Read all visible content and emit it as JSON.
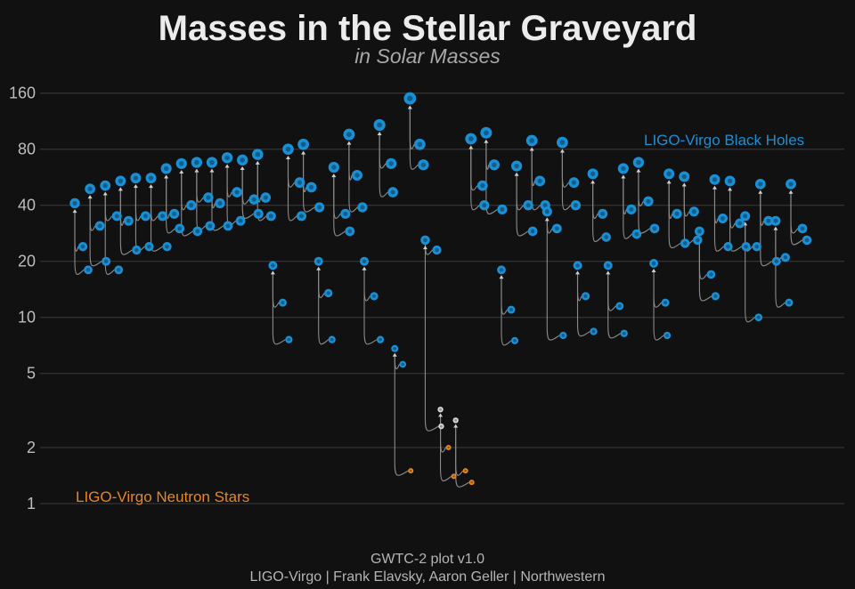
{
  "chart_data": {
    "type": "scatter",
    "title": "Masses in the Stellar Graveyard",
    "subtitle": "in Solar Masses",
    "yscale": "log",
    "ylim": [
      0.9,
      180
    ],
    "yticks": [
      1,
      2,
      5,
      10,
      20,
      40,
      80,
      160
    ],
    "grid": true,
    "annotations": {
      "black_holes_label": "LIGO-Virgo Black Holes",
      "neutron_stars_label": "LIGO-Virgo Neutron Stars"
    },
    "colors": {
      "black_hole": "#1a8fd4",
      "neutron_star": "#e8871e",
      "mass_gap": "#d8d8d8",
      "curve": "#8a8a8a",
      "grid": "#3c3c3c"
    },
    "mergers": [
      {
        "final": 41,
        "m1": 24,
        "m2": 18
      },
      {
        "final": 49,
        "m1": 31,
        "m2": 20
      },
      {
        "final": 51,
        "m1": 35,
        "m2": 18
      },
      {
        "final": 54,
        "m1": 33,
        "m2": 23
      },
      {
        "final": 56,
        "m1": 35,
        "m2": 24
      },
      {
        "final": 56,
        "m1": 35,
        "m2": 24
      },
      {
        "final": 63,
        "m1": 36,
        "m2": 30
      },
      {
        "final": 67,
        "m1": 40,
        "m2": 29
      },
      {
        "final": 68,
        "m1": 44,
        "m2": 31
      },
      {
        "final": 68,
        "m1": 41,
        "m2": 31
      },
      {
        "final": 72,
        "m1": 47,
        "m2": 33
      },
      {
        "final": 70,
        "m1": 43,
        "m2": 36
      },
      {
        "final": 75,
        "m1": 44,
        "m2": 35
      },
      {
        "final": 19,
        "m1": 12,
        "m2": 7.6
      },
      {
        "final": 80,
        "m1": 53,
        "m2": 35
      },
      {
        "final": 85,
        "m1": 50,
        "m2": 39
      },
      {
        "final": 20,
        "m1": 13.5,
        "m2": 7.6
      },
      {
        "final": 64,
        "m1": 36,
        "m2": 29
      },
      {
        "final": 96,
        "m1": 58,
        "m2": 39
      },
      {
        "final": 20,
        "m1": 13,
        "m2": 7.6
      },
      {
        "final": 108,
        "m1": 67,
        "m2": 47
      },
      {
        "final": 6.8,
        "m1": 5.6,
        "m2": 1.5
      },
      {
        "final": 150,
        "m1": 85,
        "m2": 66
      },
      {
        "final": 26,
        "m1": 23,
        "m2": 2.6
      },
      {
        "final": 3.2,
        "m1": 2.0,
        "m2": 1.4
      },
      {
        "final": 2.8,
        "m1": 1.5,
        "m2": 1.3
      },
      {
        "final": 91,
        "m1": 51,
        "m2": 40
      },
      {
        "final": 98,
        "m1": 66,
        "m2": 38
      },
      {
        "final": 18,
        "m1": 11,
        "m2": 7.5
      },
      {
        "final": 65,
        "m1": 40,
        "m2": 29
      },
      {
        "final": 89,
        "m1": 54,
        "m2": 40
      },
      {
        "final": 37,
        "m1": 30,
        "m2": 8
      },
      {
        "final": 87,
        "m1": 53,
        "m2": 40
      },
      {
        "final": 19,
        "m1": 13,
        "m2": 8.4
      },
      {
        "final": 59,
        "m1": 36,
        "m2": 27
      },
      {
        "final": 19,
        "m1": 11.5,
        "m2": 8.2
      },
      {
        "final": 63,
        "m1": 38,
        "m2": 28
      },
      {
        "final": 68,
        "m1": 42,
        "m2": 30
      },
      {
        "final": 19.5,
        "m1": 12,
        "m2": 8
      },
      {
        "final": 59,
        "m1": 36,
        "m2": 25
      },
      {
        "final": 57,
        "m1": 37,
        "m2": 26
      },
      {
        "final": 29,
        "m1": 17,
        "m2": 13
      },
      {
        "final": 55,
        "m1": 34,
        "m2": 24
      },
      {
        "final": 54,
        "m1": 32,
        "m2": 24
      },
      {
        "final": 35,
        "m1": 24,
        "m2": 10
      },
      {
        "final": 52,
        "m1": 33,
        "m2": 20
      },
      {
        "final": 33,
        "m1": 21,
        "m2": 12
      },
      {
        "final": 52,
        "m1": 30,
        "m2": 26
      }
    ]
  },
  "footer": {
    "line1": "GWTC-2 plot v1.0",
    "line2": "LIGO-Virgo | Frank Elavsky, Aaron Geller | Northwestern"
  }
}
